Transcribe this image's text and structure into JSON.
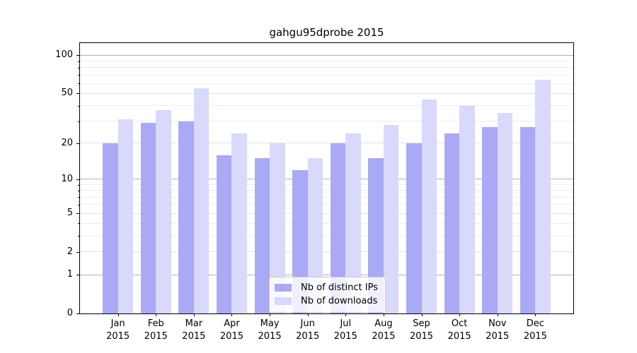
{
  "title": "gahgu95dprobe 2015",
  "legend": {
    "ips_label": "Nb of distinct IPs",
    "downloads_label": "Nb of downloads"
  },
  "colors": {
    "bar_ips": "#a9a9f5",
    "bar_downloads": "#d9d9fb",
    "gridline_decade": "#b2b2b2",
    "gridline_labeled": "#e3e3e3",
    "gridline_minor": "#ededed",
    "axis": "#000000"
  },
  "chart_data": {
    "type": "bar",
    "title": "gahgu95dprobe 2015",
    "categories": [
      "Jan",
      "Feb",
      "Mar",
      "Apr",
      "May",
      "Jun",
      "Jul",
      "Aug",
      "Sep",
      "Oct",
      "Nov",
      "Dec"
    ],
    "year": "2015",
    "series": [
      {
        "name": "Nb of distinct IPs",
        "values": [
          20,
          29,
          30,
          16,
          15,
          12,
          20,
          15,
          20,
          24,
          27,
          27
        ]
      },
      {
        "name": "Nb of downloads",
        "values": [
          31,
          37,
          55,
          24,
          20,
          15,
          24,
          28,
          45,
          40,
          35,
          64
        ]
      }
    ],
    "xlabel": "",
    "ylabel": "",
    "yscale": "log1p",
    "ylim": [
      0,
      120
    ],
    "yticks": [
      0,
      1,
      2,
      5,
      10,
      20,
      50,
      100
    ],
    "minor_gridlines": [
      3,
      4,
      6,
      7,
      8,
      9,
      30,
      40,
      60,
      70,
      80,
      90
    ],
    "grid": true,
    "legend_position": "lower center"
  }
}
